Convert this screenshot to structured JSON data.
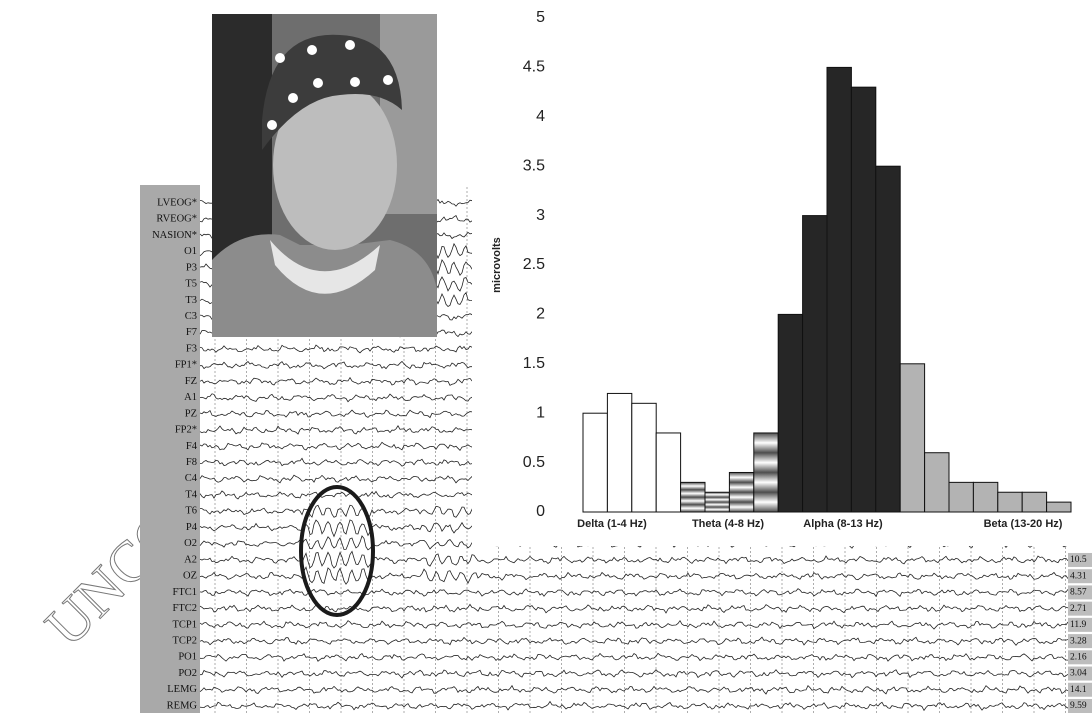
{
  "watermark": "UNCO",
  "eeg": {
    "channels": [
      "LVEOG*",
      "RVEOG*",
      "NASION*",
      "O1",
      "P3",
      "T5",
      "T3",
      "C3",
      "F7",
      "F3",
      "FP1*",
      "FZ",
      "A1",
      "PZ",
      "FP2*",
      "F4",
      "F8",
      "C4",
      "T4",
      "T6",
      "P4",
      "O2",
      "A2",
      "OZ",
      "FTC1",
      "FTC2",
      "TCP1",
      "TCP2",
      "PO1",
      "PO2",
      "LEMG",
      "REMG"
    ],
    "scale_values": [
      10.5,
      4.31,
      8.57,
      2.71,
      11.9,
      3.28,
      2.16,
      3.04,
      14.1,
      9.59
    ]
  },
  "chart_data": {
    "type": "bar",
    "ylabel": "microvolts",
    "ylim": [
      0,
      5
    ],
    "yticks": [
      0,
      0.5,
      1,
      1.5,
      2,
      2.5,
      3,
      3.5,
      4,
      4.5,
      5
    ],
    "series": [
      {
        "name": "Delta  (1-4 Hz)",
        "color": "#ffffff",
        "values": [
          1,
          1.2,
          1.1,
          0.8
        ]
      },
      {
        "name": "Theta (4-8 Hz)",
        "color": "#4d4d4d",
        "values": [
          0.3,
          0.2,
          0.4,
          0.8
        ]
      },
      {
        "name": "Alpha (8-13 Hz)",
        "color": "#262626",
        "values": [
          2,
          3,
          4.5,
          4.3,
          3.5
        ]
      },
      {
        "name": "Beta (13-20 Hz)",
        "color": "#b3b3b3",
        "values": [
          1.5,
          0.6,
          0.3,
          0.3,
          0.2,
          0.2,
          0.1
        ]
      }
    ]
  }
}
